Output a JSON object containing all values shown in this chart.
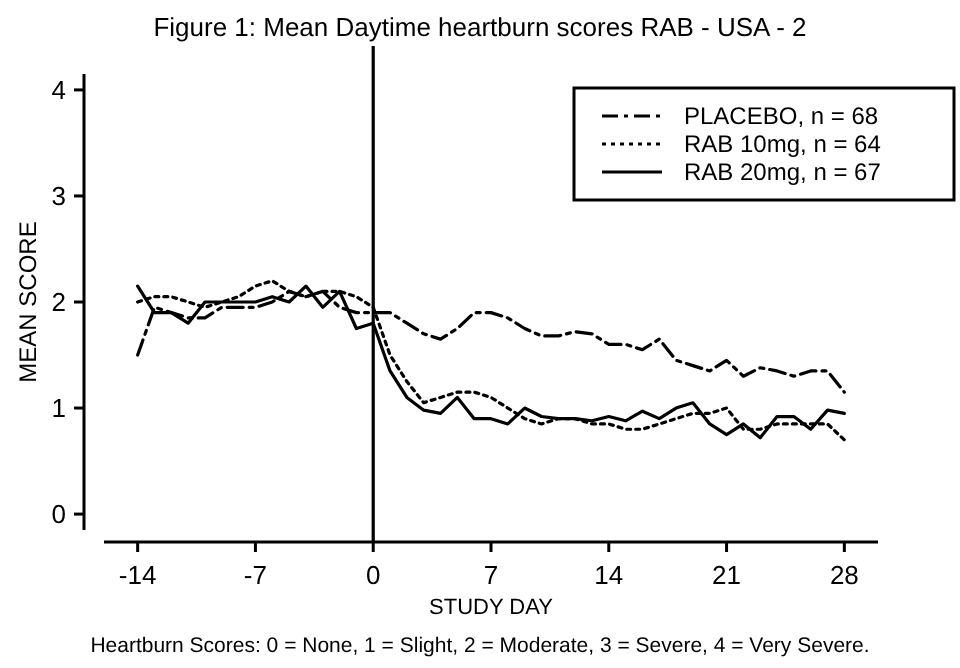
{
  "chart_data": {
    "type": "line",
    "title": "Figure 1: Mean Daytime heartburn scores RAB - USA - 2",
    "xlabel": "STUDY DAY",
    "ylabel": "MEAN SCORE",
    "annotations": [
      "Heartburn Scores: 0 = None, 1 = Slight, 2 = Moderate, 3 = Severe, 4 = Very Severe."
    ],
    "x": [
      -14,
      -13,
      -12,
      -11,
      -10,
      -9,
      -8,
      -7,
      -6,
      -5,
      -4,
      -3,
      -2,
      -1,
      0,
      1,
      2,
      3,
      4,
      5,
      6,
      7,
      8,
      9,
      10,
      11,
      12,
      13,
      14,
      15,
      16,
      17,
      18,
      19,
      20,
      21,
      22,
      23,
      24,
      25,
      26,
      27,
      28
    ],
    "series": [
      {
        "name": "PLACEBO, n = 68",
        "color": "#000000",
        "line_style": "dashed",
        "values": [
          1.5,
          1.95,
          1.9,
          1.85,
          1.85,
          1.95,
          1.95,
          1.95,
          2.0,
          2.1,
          2.05,
          2.1,
          1.95,
          1.9,
          1.9,
          1.9,
          1.8,
          1.7,
          1.65,
          1.75,
          1.9,
          1.9,
          1.85,
          1.75,
          1.68,
          1.68,
          1.72,
          1.7,
          1.6,
          1.6,
          1.55,
          1.65,
          1.45,
          1.4,
          1.35,
          1.45,
          1.3,
          1.38,
          1.35,
          1.3,
          1.35,
          1.35,
          1.15
        ]
      },
      {
        "name": "RAB 10mg, n = 64",
        "color": "#000000",
        "line_style": "dotted",
        "values": [
          2.0,
          2.05,
          2.05,
          2.0,
          1.95,
          2.0,
          2.05,
          2.15,
          2.2,
          2.1,
          2.05,
          2.1,
          2.1,
          2.05,
          1.95,
          1.5,
          1.25,
          1.05,
          1.1,
          1.15,
          1.15,
          1.1,
          1.0,
          0.9,
          0.85,
          0.9,
          0.9,
          0.85,
          0.85,
          0.8,
          0.8,
          0.85,
          0.9,
          0.95,
          0.95,
          1.0,
          0.8,
          0.8,
          0.85,
          0.85,
          0.85,
          0.85,
          0.7
        ]
      },
      {
        "name": "RAB 20mg, n = 67",
        "color": "#000000",
        "line_style": "solid",
        "values": [
          2.15,
          1.9,
          1.9,
          1.8,
          2.0,
          2.0,
          2.0,
          2.0,
          2.05,
          2.0,
          2.15,
          1.95,
          2.1,
          1.75,
          1.8,
          1.35,
          1.1,
          0.98,
          0.95,
          1.1,
          0.9,
          0.9,
          0.85,
          1.0,
          0.92,
          0.9,
          0.9,
          0.88,
          0.92,
          0.88,
          0.97,
          0.9,
          1.0,
          1.05,
          0.85,
          0.75,
          0.85,
          0.72,
          0.92,
          0.92,
          0.8,
          0.98,
          0.95
        ]
      }
    ],
    "xlim": [
      -16,
      30
    ],
    "xticks": [
      -14,
      -7,
      0,
      7,
      14,
      21,
      28
    ],
    "ylim": [
      -0.15,
      4.15
    ],
    "yticks": [
      0,
      1,
      2,
      3,
      4
    ],
    "ref_lines": [
      {
        "axis": "x",
        "value": 0,
        "color": "#000000"
      }
    ],
    "grid": false,
    "legend": "top right",
    "marker": "none"
  }
}
